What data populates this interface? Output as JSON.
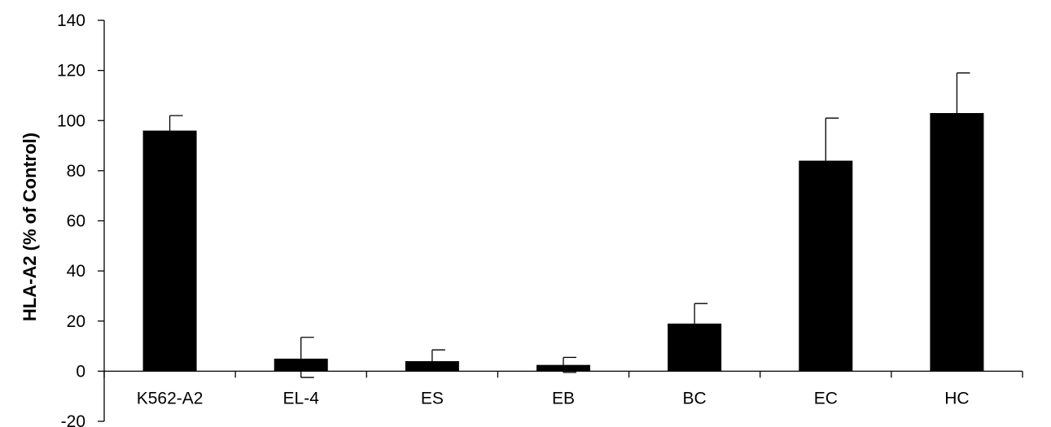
{
  "chart_data": {
    "type": "bar",
    "title": "",
    "xlabel": "",
    "ylabel": "HLA-A2 (% of Control)",
    "ylim": [
      -20,
      140
    ],
    "yticks": [
      -20,
      0,
      20,
      40,
      60,
      80,
      100,
      120,
      140
    ],
    "grid": false,
    "legend": "none",
    "categories": [
      "K562-A2",
      "EL-4",
      "ES",
      "EB",
      "BC",
      "EC",
      "HC"
    ],
    "values": [
      96,
      5,
      4,
      2.5,
      19,
      84,
      103
    ],
    "error_plus": [
      6,
      8.5,
      4.5,
      3,
      8,
      17,
      16
    ],
    "error_minus": [
      0,
      7.5,
      0,
      3,
      0,
      0,
      0
    ],
    "bar_color": "#000000"
  }
}
